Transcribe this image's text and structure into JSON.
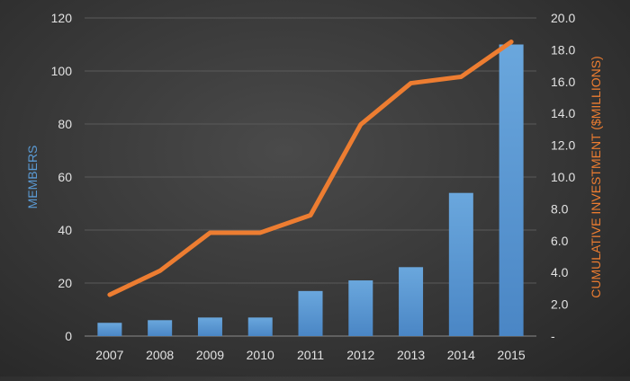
{
  "chart_data": {
    "type": "bar+line",
    "categories": [
      "2007",
      "2008",
      "2009",
      "2010",
      "2011",
      "2012",
      "2013",
      "2014",
      "2015"
    ],
    "series": [
      {
        "type": "bar",
        "axis": "left",
        "color": "#5b9bd5",
        "values": [
          5,
          6,
          7,
          7,
          17,
          21,
          26,
          54,
          110
        ]
      },
      {
        "type": "line",
        "axis": "right",
        "color": "#ed7d31",
        "values": [
          2.6,
          4.1,
          6.5,
          6.5,
          7.6,
          13.3,
          15.9,
          16.3,
          18.5
        ]
      }
    ],
    "y_left": {
      "label": "MEMBERS",
      "range": [
        0,
        120
      ],
      "ticks": [
        "0",
        "20",
        "40",
        "60",
        "80",
        "100",
        "120"
      ],
      "color": "#5b9bd5"
    },
    "y_right": {
      "label": "CUMULATIVE INVESTMENT ($MILLIONS)",
      "range": [
        0,
        20
      ],
      "ticks": [
        "-",
        "2.0",
        "4.0",
        "6.0",
        "8.0",
        "10.0",
        "12.0",
        "14.0",
        "16.0",
        "18.0",
        "20.0"
      ],
      "color": "#ed7d31"
    },
    "grid": true,
    "legend": "none",
    "background": "#3a3a3a",
    "grid_color": "#5a5a5a",
    "text_color": "#e2e2e2"
  }
}
